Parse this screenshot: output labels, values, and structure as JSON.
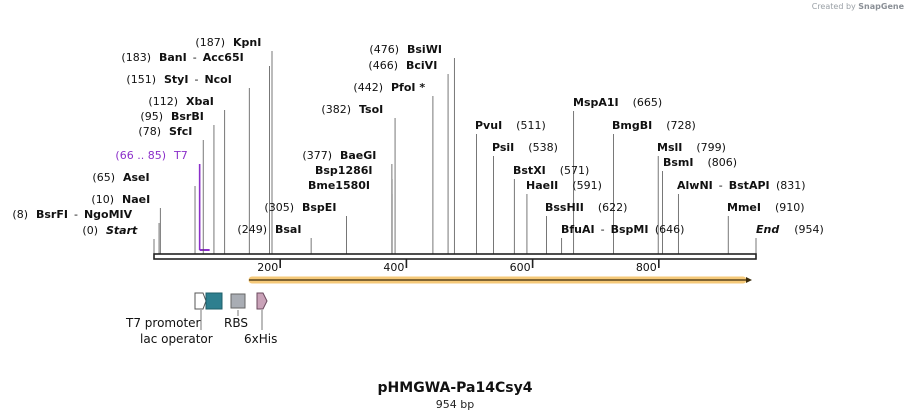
{
  "watermark": {
    "prefix": "Created by",
    "brand": "SnapGene"
  },
  "sequence": {
    "name": "pHMGWA-Pa14Csy4",
    "length_label": "954 bp",
    "length": 954
  },
  "ruler": {
    "ticks": [
      {
        "pos": 200,
        "label": "200"
      },
      {
        "pos": 400,
        "label": "400"
      },
      {
        "pos": 600,
        "label": "600"
      },
      {
        "pos": 800,
        "label": "800"
      }
    ]
  },
  "sites": [
    {
      "id": "start",
      "pos": 0,
      "pos_label": "(0)",
      "name": "Start",
      "style": "italic"
    },
    {
      "id": "bsrfi",
      "pos": 8,
      "pos_label": "(8)",
      "name": "BsrFI",
      "name2": "NgoMIV"
    },
    {
      "id": "naei",
      "pos": 10,
      "pos_label": "(10)",
      "name": "NaeI"
    },
    {
      "id": "asei",
      "pos": 65,
      "pos_label": "(65)",
      "name": "AseI"
    },
    {
      "id": "t7",
      "pos": 66,
      "pos_label": "(66 .. 85)",
      "name": "T7",
      "style": "primer"
    },
    {
      "id": "sfci",
      "pos": 78,
      "pos_label": "(78)",
      "name": "SfcI"
    },
    {
      "id": "bsrbi",
      "pos": 95,
      "pos_label": "(95)",
      "name": "BsrBI"
    },
    {
      "id": "xbai",
      "pos": 112,
      "pos_label": "(112)",
      "name": "XbaI"
    },
    {
      "id": "styi",
      "pos": 151,
      "pos_label": "(151)",
      "name": "StyI",
      "name2": "NcoI"
    },
    {
      "id": "bani",
      "pos": 183,
      "pos_label": "(183)",
      "name": "BanI",
      "name2": "Acc65I"
    },
    {
      "id": "kpni",
      "pos": 187,
      "pos_label": "(187)",
      "name": "KpnI"
    },
    {
      "id": "bsai",
      "pos": 249,
      "pos_label": "(249)",
      "name": "BsaI"
    },
    {
      "id": "bspei",
      "pos": 305,
      "pos_label": "(305)",
      "name": "BspEI"
    },
    {
      "id": "baegi",
      "pos": 377,
      "pos_label": "(377)",
      "name": "BaeGI"
    },
    {
      "id": "bsp1286i",
      "pos": 377,
      "pos_label": "",
      "name": "Bsp1286I"
    },
    {
      "id": "bme1580i",
      "pos": 377,
      "pos_label": "",
      "name": "Bme1580I"
    },
    {
      "id": "tsoi",
      "pos": 382,
      "pos_label": "(382)",
      "name": "TsoI"
    },
    {
      "id": "pfoi",
      "pos": 442,
      "pos_label": "(442)",
      "name": "PfoI *"
    },
    {
      "id": "bcivi",
      "pos": 466,
      "pos_label": "(466)",
      "name": "BciVI"
    },
    {
      "id": "bsiwi",
      "pos": 476,
      "pos_label": "(476)",
      "name": "BsiWI"
    },
    {
      "id": "pvui",
      "pos": 511,
      "pos_label": "(511)",
      "name": "PvuI"
    },
    {
      "id": "psii",
      "pos": 538,
      "pos_label": "(538)",
      "name": "PsiI"
    },
    {
      "id": "bstxi",
      "pos": 571,
      "pos_label": "(571)",
      "name": "BstXI"
    },
    {
      "id": "haeii",
      "pos": 591,
      "pos_label": "(591)",
      "name": "HaeII"
    },
    {
      "id": "bsshii",
      "pos": 622,
      "pos_label": "(622)",
      "name": "BssHII"
    },
    {
      "id": "bfuai",
      "pos": 646,
      "pos_label": "(646)",
      "name": "BfuAI",
      "name2": "BspMI"
    },
    {
      "id": "mspa1i",
      "pos": 665,
      "pos_label": "(665)",
      "name": "MspA1I"
    },
    {
      "id": "bmgbi",
      "pos": 728,
      "pos_label": "(728)",
      "name": "BmgBI"
    },
    {
      "id": "msli",
      "pos": 799,
      "pos_label": "(799)",
      "name": "MslI"
    },
    {
      "id": "bsmi",
      "pos": 806,
      "pos_label": "(806)",
      "name": "BsmI"
    },
    {
      "id": "alwni",
      "pos": 831,
      "pos_label": "(831)",
      "name": "AlwNI",
      "name2": "BstAPI"
    },
    {
      "id": "mmei",
      "pos": 910,
      "pos_label": "(910)",
      "name": "MmeI"
    },
    {
      "id": "end",
      "pos": 954,
      "pos_label": "(954)",
      "name": "End",
      "style": "italic"
    }
  ],
  "features": [
    {
      "id": "t7-promoter",
      "label": "T7 promoter",
      "color": "#ffffff"
    },
    {
      "id": "lac-operator",
      "label": "lac operator",
      "color": "#2e7f8f"
    },
    {
      "id": "rbs",
      "label": "RBS",
      "color": "#a9adb4"
    },
    {
      "id": "6xhis",
      "label": "6xHis",
      "color": "#c9a2b8"
    }
  ],
  "cds": {
    "color": "#f5c979",
    "stroke": "#c88a1f"
  },
  "colors": {
    "primer": "#8b2fc9",
    "text": "#111111",
    "line": "#444444"
  }
}
